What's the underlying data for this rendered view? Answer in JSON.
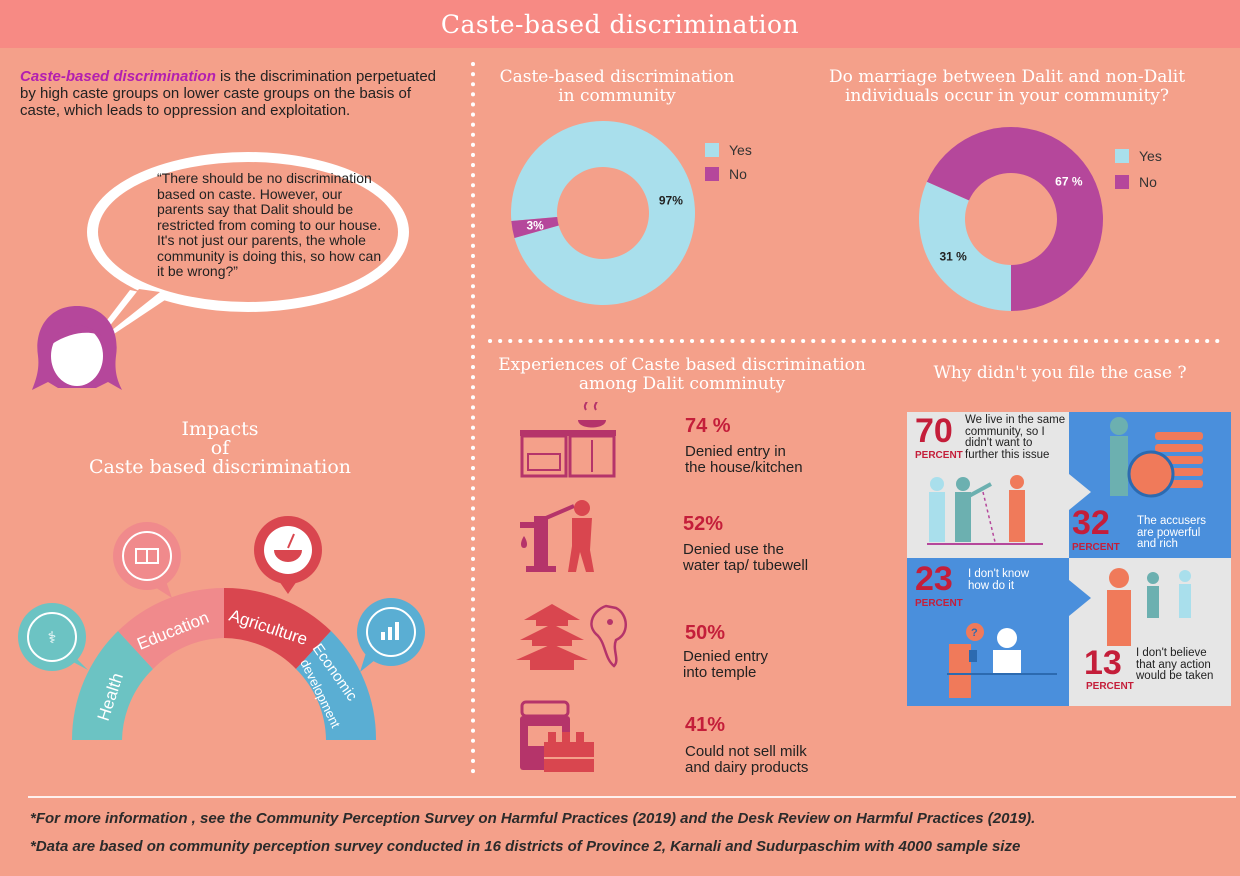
{
  "header": {
    "title": "Caste-based discrimination"
  },
  "intro": {
    "highlight": "Caste-based discrimination",
    "text": " is the discrimination perpetuated by high caste groups on lower caste groups on the basis of caste, which leads to oppression and exploitation."
  },
  "quote": "“There should be no discrimination based on caste. However, our parents say that Dalit should be restricted from coming to our house. It's not just our parents, the whole community is doing this, so how can it be wrong?”",
  "impacts": {
    "title_line1": "Impacts",
    "title_line2": "of",
    "title_line3": "Caste based discrimination",
    "segments": [
      "Health",
      "Education",
      "Agriculture",
      "Economic",
      "development"
    ],
    "colors": {
      "health": "#6cc3c3",
      "education": "#f08a8c",
      "agriculture": "#d9464f",
      "economic": "#5aaed3"
    }
  },
  "chart1": {
    "title_line1": "Caste-based discrimination",
    "title_line2": "in community",
    "legend": [
      "Yes",
      "No"
    ],
    "chart_data": {
      "type": "pie",
      "categories": [
        "Yes",
        "No"
      ],
      "values": [
        97,
        3
      ],
      "labels": [
        "97%",
        "3%"
      ]
    }
  },
  "chart2": {
    "title_line1": "Do marriage between Dalit and non-Dalit",
    "title_line2": "individuals occur in your community?",
    "legend": [
      "Yes",
      "No"
    ],
    "chart_data": {
      "type": "pie",
      "categories": [
        "Yes",
        "No"
      ],
      "values": [
        31,
        67
      ],
      "labels": [
        "31 %",
        "67 %"
      ]
    }
  },
  "colors": {
    "yes": "#a9dfec",
    "no": "#b5479b",
    "accent_red": "#c41e3a"
  },
  "experiences": {
    "title_line1": "Experiences of Caste based discrimination",
    "title_line2": "among Dalit comminuty",
    "items": [
      {
        "pct": "74 %",
        "line1": "Denied entry in",
        "line2": "the house/kitchen",
        "icon": "kitchen-icon"
      },
      {
        "pct": "52%",
        "line1": "Denied use the",
        "line2": "water tap/ tubewell",
        "icon": "water-tap-icon"
      },
      {
        "pct": "50%",
        "line1": "Denied entry",
        "line2": "into temple",
        "icon": "temple-icon"
      },
      {
        "pct": "41%",
        "line1": "Could not sell milk",
        "line2": "and dairy products",
        "icon": "milk-icon"
      }
    ]
  },
  "why": {
    "title": "Why didn't you file the case ?",
    "percent_word": "PERCENT",
    "panels": [
      {
        "num": "70",
        "line1": "We live in the same",
        "line2": "community, so I",
        "line3": "didn't want to",
        "line4": "further this issue"
      },
      {
        "num": "32",
        "line1": "The accusers",
        "line2": "are powerful",
        "line3": "and rich"
      },
      {
        "num": "23",
        "line1": "I don't know",
        "line2": "how do it"
      },
      {
        "num": "13",
        "line1": "I don't believe",
        "line2": "that any action",
        "line3": "would be taken"
      }
    ]
  },
  "footer": {
    "note1": "*For more information , see the Community Perception Survey on Harmful Practices (2019) and the Desk Review on Harmful Practices (2019).",
    "note2": "*Data are based on community perception survey conducted in 16 districts of Province 2, Karnali and Sudurpaschim with 4000 sample size"
  }
}
